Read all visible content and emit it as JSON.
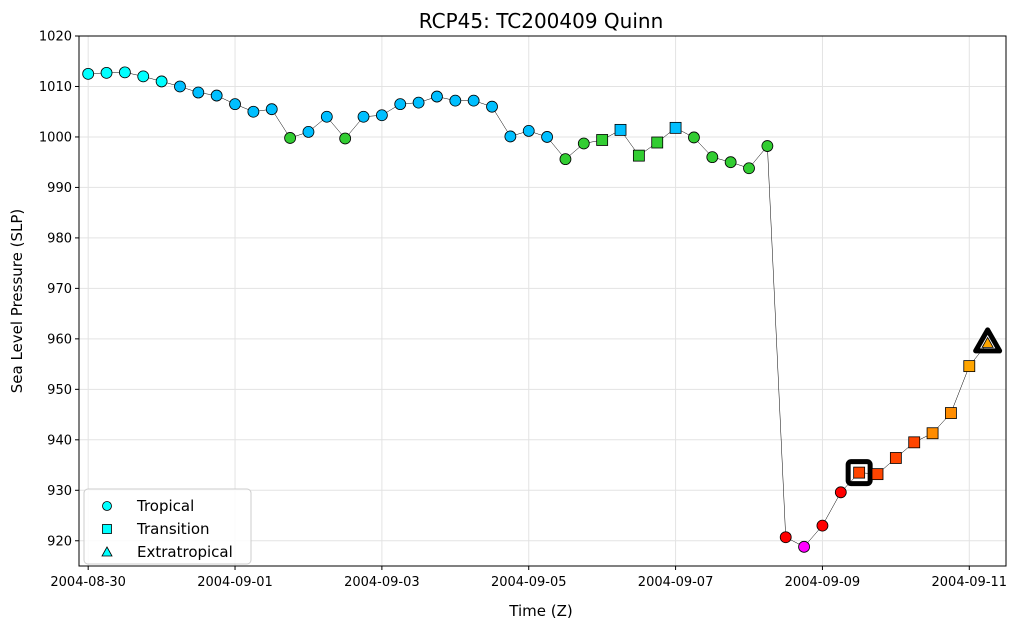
{
  "chart_data": {
    "type": "scatter",
    "title": "RCP45: TC200409 Quinn",
    "xlabel": "Time (Z)",
    "ylabel": "Sea Level Pressure (SLP)",
    "ylim": [
      915,
      1020
    ],
    "xlim": [
      "2004-08-29T21:00",
      "2004-09-11T12:00"
    ],
    "yticks": [
      920,
      930,
      940,
      950,
      960,
      970,
      980,
      990,
      1000,
      1010,
      1020
    ],
    "xticks": [
      "2004-08-30",
      "2004-09-01",
      "2004-09-03",
      "2004-09-05",
      "2004-09-07",
      "2004-09-09",
      "2004-09-11"
    ],
    "grid": true,
    "legend": {
      "position": "lower-left",
      "entries": [
        {
          "label": "Tropical",
          "marker": "circle"
        },
        {
          "label": "Transition",
          "marker": "square"
        },
        {
          "label": "Extratropical",
          "marker": "triangle"
        }
      ]
    },
    "colors": {
      "cyan": "#00ffff",
      "deepskyblue": "#00bfff",
      "limegreen": "#32cd32",
      "red": "#ff0000",
      "magenta": "#ff00ff",
      "orangered": "#ff4500",
      "darkorange": "#ff8c00",
      "orange": "#ffa500",
      "track_line": "#000000"
    },
    "points": [
      {
        "t": "2004-08-30T00:00",
        "slp": 1012.5,
        "marker": "circle",
        "color": "cyan"
      },
      {
        "t": "2004-08-30T06:00",
        "slp": 1012.7,
        "marker": "circle",
        "color": "cyan"
      },
      {
        "t": "2004-08-30T12:00",
        "slp": 1012.8,
        "marker": "circle",
        "color": "cyan"
      },
      {
        "t": "2004-08-30T18:00",
        "slp": 1012.0,
        "marker": "circle",
        "color": "cyan"
      },
      {
        "t": "2004-08-31T00:00",
        "slp": 1011.0,
        "marker": "circle",
        "color": "cyan"
      },
      {
        "t": "2004-08-31T06:00",
        "slp": 1010.0,
        "marker": "circle",
        "color": "deepskyblue"
      },
      {
        "t": "2004-08-31T12:00",
        "slp": 1008.8,
        "marker": "circle",
        "color": "deepskyblue"
      },
      {
        "t": "2004-08-31T18:00",
        "slp": 1008.2,
        "marker": "circle",
        "color": "deepskyblue"
      },
      {
        "t": "2004-09-01T00:00",
        "slp": 1006.5,
        "marker": "circle",
        "color": "deepskyblue"
      },
      {
        "t": "2004-09-01T06:00",
        "slp": 1005.0,
        "marker": "circle",
        "color": "deepskyblue"
      },
      {
        "t": "2004-09-01T12:00",
        "slp": 1005.5,
        "marker": "circle",
        "color": "deepskyblue"
      },
      {
        "t": "2004-09-01T18:00",
        "slp": 999.8,
        "marker": "circle",
        "color": "limegreen"
      },
      {
        "t": "2004-09-02T00:00",
        "slp": 1001.0,
        "marker": "circle",
        "color": "deepskyblue"
      },
      {
        "t": "2004-09-02T06:00",
        "slp": 1004.0,
        "marker": "circle",
        "color": "deepskyblue"
      },
      {
        "t": "2004-09-02T12:00",
        "slp": 999.7,
        "marker": "circle",
        "color": "limegreen"
      },
      {
        "t": "2004-09-02T18:00",
        "slp": 1004.0,
        "marker": "circle",
        "color": "deepskyblue"
      },
      {
        "t": "2004-09-03T00:00",
        "slp": 1004.3,
        "marker": "circle",
        "color": "deepskyblue"
      },
      {
        "t": "2004-09-03T06:00",
        "slp": 1006.5,
        "marker": "circle",
        "color": "deepskyblue"
      },
      {
        "t": "2004-09-03T12:00",
        "slp": 1006.8,
        "marker": "circle",
        "color": "deepskyblue"
      },
      {
        "t": "2004-09-03T18:00",
        "slp": 1008.0,
        "marker": "circle",
        "color": "deepskyblue"
      },
      {
        "t": "2004-09-04T00:00",
        "slp": 1007.2,
        "marker": "circle",
        "color": "deepskyblue"
      },
      {
        "t": "2004-09-04T06:00",
        "slp": 1007.2,
        "marker": "circle",
        "color": "deepskyblue"
      },
      {
        "t": "2004-09-04T12:00",
        "slp": 1006.0,
        "marker": "circle",
        "color": "deepskyblue"
      },
      {
        "t": "2004-09-04T18:00",
        "slp": 1000.1,
        "marker": "circle",
        "color": "deepskyblue"
      },
      {
        "t": "2004-09-05T00:00",
        "slp": 1001.2,
        "marker": "circle",
        "color": "deepskyblue"
      },
      {
        "t": "2004-09-05T06:00",
        "slp": 1000.0,
        "marker": "circle",
        "color": "deepskyblue"
      },
      {
        "t": "2004-09-05T12:00",
        "slp": 995.6,
        "marker": "circle",
        "color": "limegreen"
      },
      {
        "t": "2004-09-05T18:00",
        "slp": 998.7,
        "marker": "circle",
        "color": "limegreen"
      },
      {
        "t": "2004-09-06T00:00",
        "slp": 999.4,
        "marker": "square",
        "color": "limegreen"
      },
      {
        "t": "2004-09-06T06:00",
        "slp": 1001.4,
        "marker": "square",
        "color": "deepskyblue"
      },
      {
        "t": "2004-09-06T12:00",
        "slp": 996.3,
        "marker": "square",
        "color": "limegreen"
      },
      {
        "t": "2004-09-06T18:00",
        "slp": 998.9,
        "marker": "square",
        "color": "limegreen"
      },
      {
        "t": "2004-09-07T00:00",
        "slp": 1001.8,
        "marker": "square",
        "color": "deepskyblue"
      },
      {
        "t": "2004-09-07T06:00",
        "slp": 999.9,
        "marker": "circle",
        "color": "limegreen"
      },
      {
        "t": "2004-09-07T12:00",
        "slp": 996.0,
        "marker": "circle",
        "color": "limegreen"
      },
      {
        "t": "2004-09-07T18:00",
        "slp": 995.0,
        "marker": "circle",
        "color": "limegreen"
      },
      {
        "t": "2004-09-08T00:00",
        "slp": 993.8,
        "marker": "circle",
        "color": "limegreen"
      },
      {
        "t": "2004-09-08T06:00",
        "slp": 998.2,
        "marker": "circle",
        "color": "limegreen"
      },
      {
        "t": "2004-09-08T12:00",
        "slp": 920.7,
        "marker": "circle",
        "color": "red"
      },
      {
        "t": "2004-09-08T18:00",
        "slp": 918.8,
        "marker": "circle",
        "color": "magenta"
      },
      {
        "t": "2004-09-09T00:00",
        "slp": 923.0,
        "marker": "circle",
        "color": "red"
      },
      {
        "t": "2004-09-09T06:00",
        "slp": 929.6,
        "marker": "circle",
        "color": "red"
      },
      {
        "t": "2004-09-09T12:00",
        "slp": 933.5,
        "marker": "square",
        "color": "orangered",
        "highlight": true
      },
      {
        "t": "2004-09-09T18:00",
        "slp": 933.2,
        "marker": "square",
        "color": "orangered"
      },
      {
        "t": "2004-09-10T00:00",
        "slp": 936.4,
        "marker": "square",
        "color": "orangered"
      },
      {
        "t": "2004-09-10T06:00",
        "slp": 939.5,
        "marker": "square",
        "color": "orangered"
      },
      {
        "t": "2004-09-10T12:00",
        "slp": 941.3,
        "marker": "square",
        "color": "darkorange"
      },
      {
        "t": "2004-09-10T18:00",
        "slp": 945.3,
        "marker": "square",
        "color": "darkorange"
      },
      {
        "t": "2004-09-11T00:00",
        "slp": 954.6,
        "marker": "square",
        "color": "orange"
      },
      {
        "t": "2004-09-11T06:00",
        "slp": 959.2,
        "marker": "triangle",
        "color": "orange",
        "highlight": true
      }
    ]
  }
}
